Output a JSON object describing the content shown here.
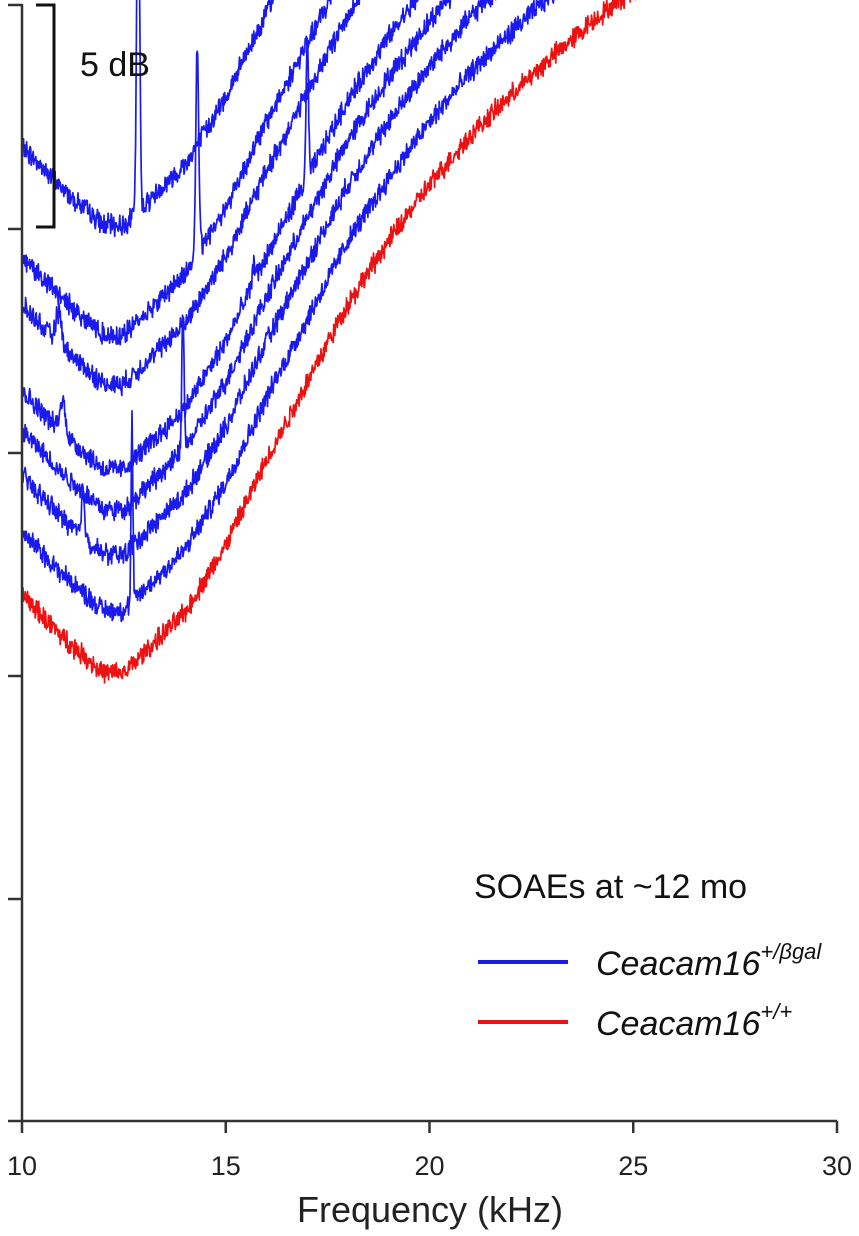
{
  "chart_data": {
    "type": "line",
    "title": "",
    "xlabel": "Frequency (kHz)",
    "ylabel": "",
    "xlim": [
      10,
      30
    ],
    "x_ticks": [
      10,
      15,
      20,
      25,
      30
    ],
    "scale_bar": {
      "label": "5 dB",
      "value_db": 5
    },
    "legend": {
      "title": "SOAEs at ~12 mo",
      "position": "lower-right",
      "entries": [
        {
          "base": "Ceacam16",
          "sup": "+/βgal",
          "color": "#1a1aee"
        },
        {
          "base": "Ceacam16",
          "sup": "+/+",
          "color": "#ee1111"
        }
      ]
    },
    "series": [
      {
        "group": "+/βgal",
        "color": "#1a1aee",
        "baseline_db": 43.5,
        "x": [
          10,
          11,
          12,
          12.5,
          13,
          14,
          15,
          16,
          17,
          18,
          19,
          20,
          21,
          22,
          23,
          24,
          25,
          26,
          27,
          28,
          29,
          30
        ],
        "y": [
          0,
          -1.9,
          -3.5,
          -3.5,
          -2.6,
          -0.8,
          2.2,
          6,
          9.5,
          13,
          15.8,
          18.3,
          20.5,
          22.3,
          24,
          25.6,
          27,
          28.5,
          29.8,
          31,
          32.3,
          33.5
        ],
        "peaks": [
          {
            "f": 12.85,
            "h": 16.2,
            "w": 0.05
          },
          {
            "f": 17.4,
            "h": 1.6,
            "w": 0.2
          },
          {
            "f": 19.85,
            "h": 0.9,
            "w": 0.25
          }
        ]
      },
      {
        "group": "+/βgal",
        "color": "#1a1aee",
        "baseline_db": 38.6,
        "x": [
          10,
          11,
          12,
          12.5,
          13,
          14,
          15,
          16,
          17,
          18,
          19,
          20,
          21,
          22,
          23,
          24,
          25,
          26,
          27,
          28,
          29,
          30
        ],
        "y": [
          0,
          -1.9,
          -3.5,
          -3.5,
          -2.6,
          -0.8,
          2.2,
          6,
          9.5,
          13,
          15.8,
          18.3,
          20.5,
          22.3,
          24,
          25.6,
          27,
          28.5,
          29.8,
          31,
          32.3,
          33.5
        ],
        "peaks": [
          {
            "f": 14.3,
            "h": 9.3,
            "w": 0.05
          },
          {
            "f": 18.75,
            "h": 0.8,
            "w": 0.15
          }
        ]
      },
      {
        "group": "+/βgal",
        "color": "#1a1aee",
        "baseline_db": 36.4,
        "x": [
          10,
          11,
          12,
          12.5,
          13,
          14,
          15,
          16,
          17,
          18,
          19,
          20,
          21,
          22,
          23,
          24,
          25,
          26,
          27,
          28,
          29,
          30
        ],
        "y": [
          0,
          -1.9,
          -3.5,
          -3.5,
          -2.6,
          -0.8,
          2.2,
          6,
          9.5,
          13,
          15.8,
          18.3,
          20.5,
          22.3,
          24,
          25.6,
          27,
          28.5,
          29.8,
          31,
          32.3,
          33.5
        ],
        "peaks": [
          {
            "f": 10.9,
            "h": 1.4,
            "w": 0.1
          },
          {
            "f": 20.1,
            "h": 1.1,
            "w": 0.05
          },
          {
            "f": 22.45,
            "h": 2.9,
            "w": 0.05
          },
          {
            "f": 24.5,
            "h": 4.1,
            "w": 0.06
          }
        ]
      },
      {
        "group": "+/βgal",
        "color": "#1a1aee",
        "baseline_db": 32.6,
        "x": [
          10,
          11,
          12,
          12.5,
          13,
          14,
          15,
          16,
          17,
          18,
          19,
          20,
          21,
          22,
          23,
          24,
          25,
          26,
          27,
          28,
          29,
          30
        ],
        "y": [
          0,
          -1.9,
          -3.5,
          -3.5,
          -2.6,
          -0.8,
          2.2,
          6,
          9.5,
          13,
          15.8,
          18.3,
          20.5,
          22.3,
          24,
          25.6,
          27,
          28.5,
          29.8,
          31,
          32.3,
          33.5
        ],
        "peaks": [
          {
            "f": 11.0,
            "h": 1.4,
            "w": 0.1
          },
          {
            "f": 15.7,
            "h": 0.8,
            "w": 0.06
          },
          {
            "f": 17.0,
            "h": 6.2,
            "w": 0.04
          }
        ]
      },
      {
        "group": "+/βgal",
        "color": "#1a1aee",
        "baseline_db": 30.8,
        "x": [
          10,
          11,
          12,
          12.5,
          13,
          14,
          15,
          16,
          17,
          18,
          19,
          20,
          21,
          22,
          23,
          24,
          25,
          26,
          27,
          28,
          29,
          30
        ],
        "y": [
          0,
          -1.9,
          -3.5,
          -3.5,
          -2.6,
          -0.8,
          2.2,
          6,
          9.5,
          13,
          15.8,
          18.3,
          20.5,
          22.3,
          24,
          25.6,
          27,
          28.5,
          29.8,
          31,
          32.3,
          33.5
        ],
        "peaks": [
          {
            "f": 13.95,
            "h": 6.3,
            "w": 0.04
          }
        ]
      },
      {
        "group": "+/βgal",
        "color": "#1a1aee",
        "baseline_db": 28.8,
        "x": [
          10,
          11,
          12,
          12.5,
          13,
          14,
          15,
          16,
          17,
          18,
          19,
          20,
          21,
          22,
          23,
          24,
          25,
          26,
          27,
          28,
          29,
          30
        ],
        "y": [
          0,
          -1.9,
          -3.5,
          -3.5,
          -2.6,
          -0.8,
          2.2,
          6,
          9.5,
          13,
          15.8,
          18.3,
          20.5,
          22.3,
          24,
          25.6,
          27,
          28.5,
          29.8,
          31,
          32.3,
          33.5
        ],
        "peaks": [
          {
            "f": 11.5,
            "h": 2.1,
            "w": 0.05
          }
        ]
      },
      {
        "group": "+/βgal",
        "color": "#1a1aee",
        "baseline_db": 26.3,
        "x": [
          10,
          11,
          12,
          12.5,
          13,
          14,
          15,
          16,
          17,
          18,
          19,
          20,
          21,
          22,
          23,
          24,
          25,
          26,
          27,
          28,
          29,
          30
        ],
        "y": [
          0,
          -1.9,
          -3.5,
          -3.5,
          -2.6,
          -0.8,
          2.2,
          6,
          9.5,
          13,
          15.8,
          18.3,
          20.5,
          22.3,
          24,
          25.6,
          27,
          28.5,
          29.8,
          31,
          32.3,
          33.5
        ],
        "peaks": [
          {
            "f": 12.7,
            "h": 8.2,
            "w": 0.03
          }
        ]
      },
      {
        "group": "+/+",
        "color": "#ee1111",
        "baseline_db": 23.5,
        "x": [
          10,
          11,
          12,
          12.5,
          13,
          14,
          15,
          16,
          17,
          18,
          19,
          20,
          21,
          22,
          23,
          24,
          25,
          26,
          27,
          28,
          29,
          30
        ],
        "y": [
          0,
          -1.9,
          -3.5,
          -3.5,
          -2.6,
          -0.8,
          2.2,
          6,
          9.5,
          13,
          15.8,
          18.3,
          20.5,
          22.3,
          24,
          25.6,
          27,
          28.5,
          29.8,
          31,
          32.3,
          33.5
        ],
        "peaks": []
      }
    ]
  }
}
